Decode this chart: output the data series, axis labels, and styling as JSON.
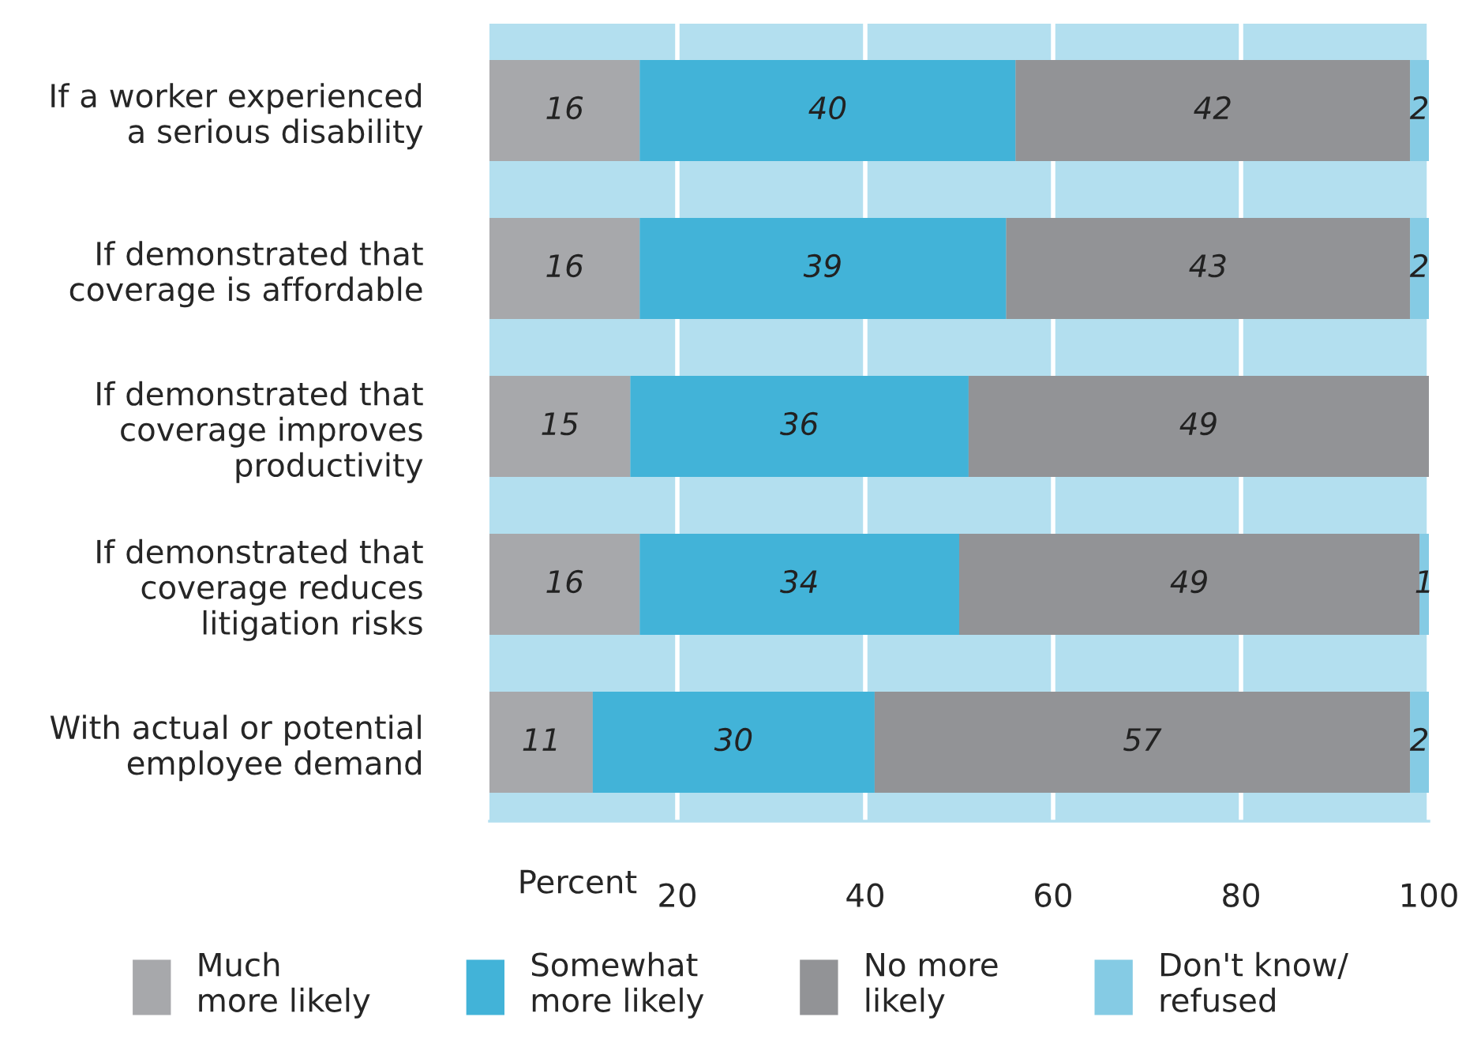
{
  "chart_data": {
    "type": "bar",
    "orientation": "horizontal",
    "stacked": true,
    "categories": [
      "If a worker experienced\na serious disability",
      "If demonstrated that\ncoverage is affordable",
      "If demonstrated that\ncoverage improves\nproductivity",
      "If demonstrated that\ncoverage reduces\nlitigation risks",
      "With actual or potential\nemployee demand"
    ],
    "series": [
      {
        "name": "Much\nmore likely",
        "color": "#a7a8ab",
        "values": [
          16,
          16,
          15,
          16,
          11
        ]
      },
      {
        "name": "Somewhat\nmore likely",
        "color": "#42b3d8",
        "values": [
          40,
          39,
          36,
          34,
          30
        ]
      },
      {
        "name": "No more\nlikely",
        "color": "#929396",
        "values": [
          42,
          43,
          49,
          49,
          57
        ]
      },
      {
        "name": "Don't know/\nrefused",
        "color": "#85cbe4",
        "values": [
          2,
          2,
          null,
          1,
          2
        ]
      }
    ],
    "xlim": [
      0,
      100
    ],
    "xticks": [
      20,
      40,
      60,
      80,
      100
    ],
    "xlabel": "Percent",
    "data_labels": true,
    "grid": "x",
    "legend": "bottom"
  }
}
